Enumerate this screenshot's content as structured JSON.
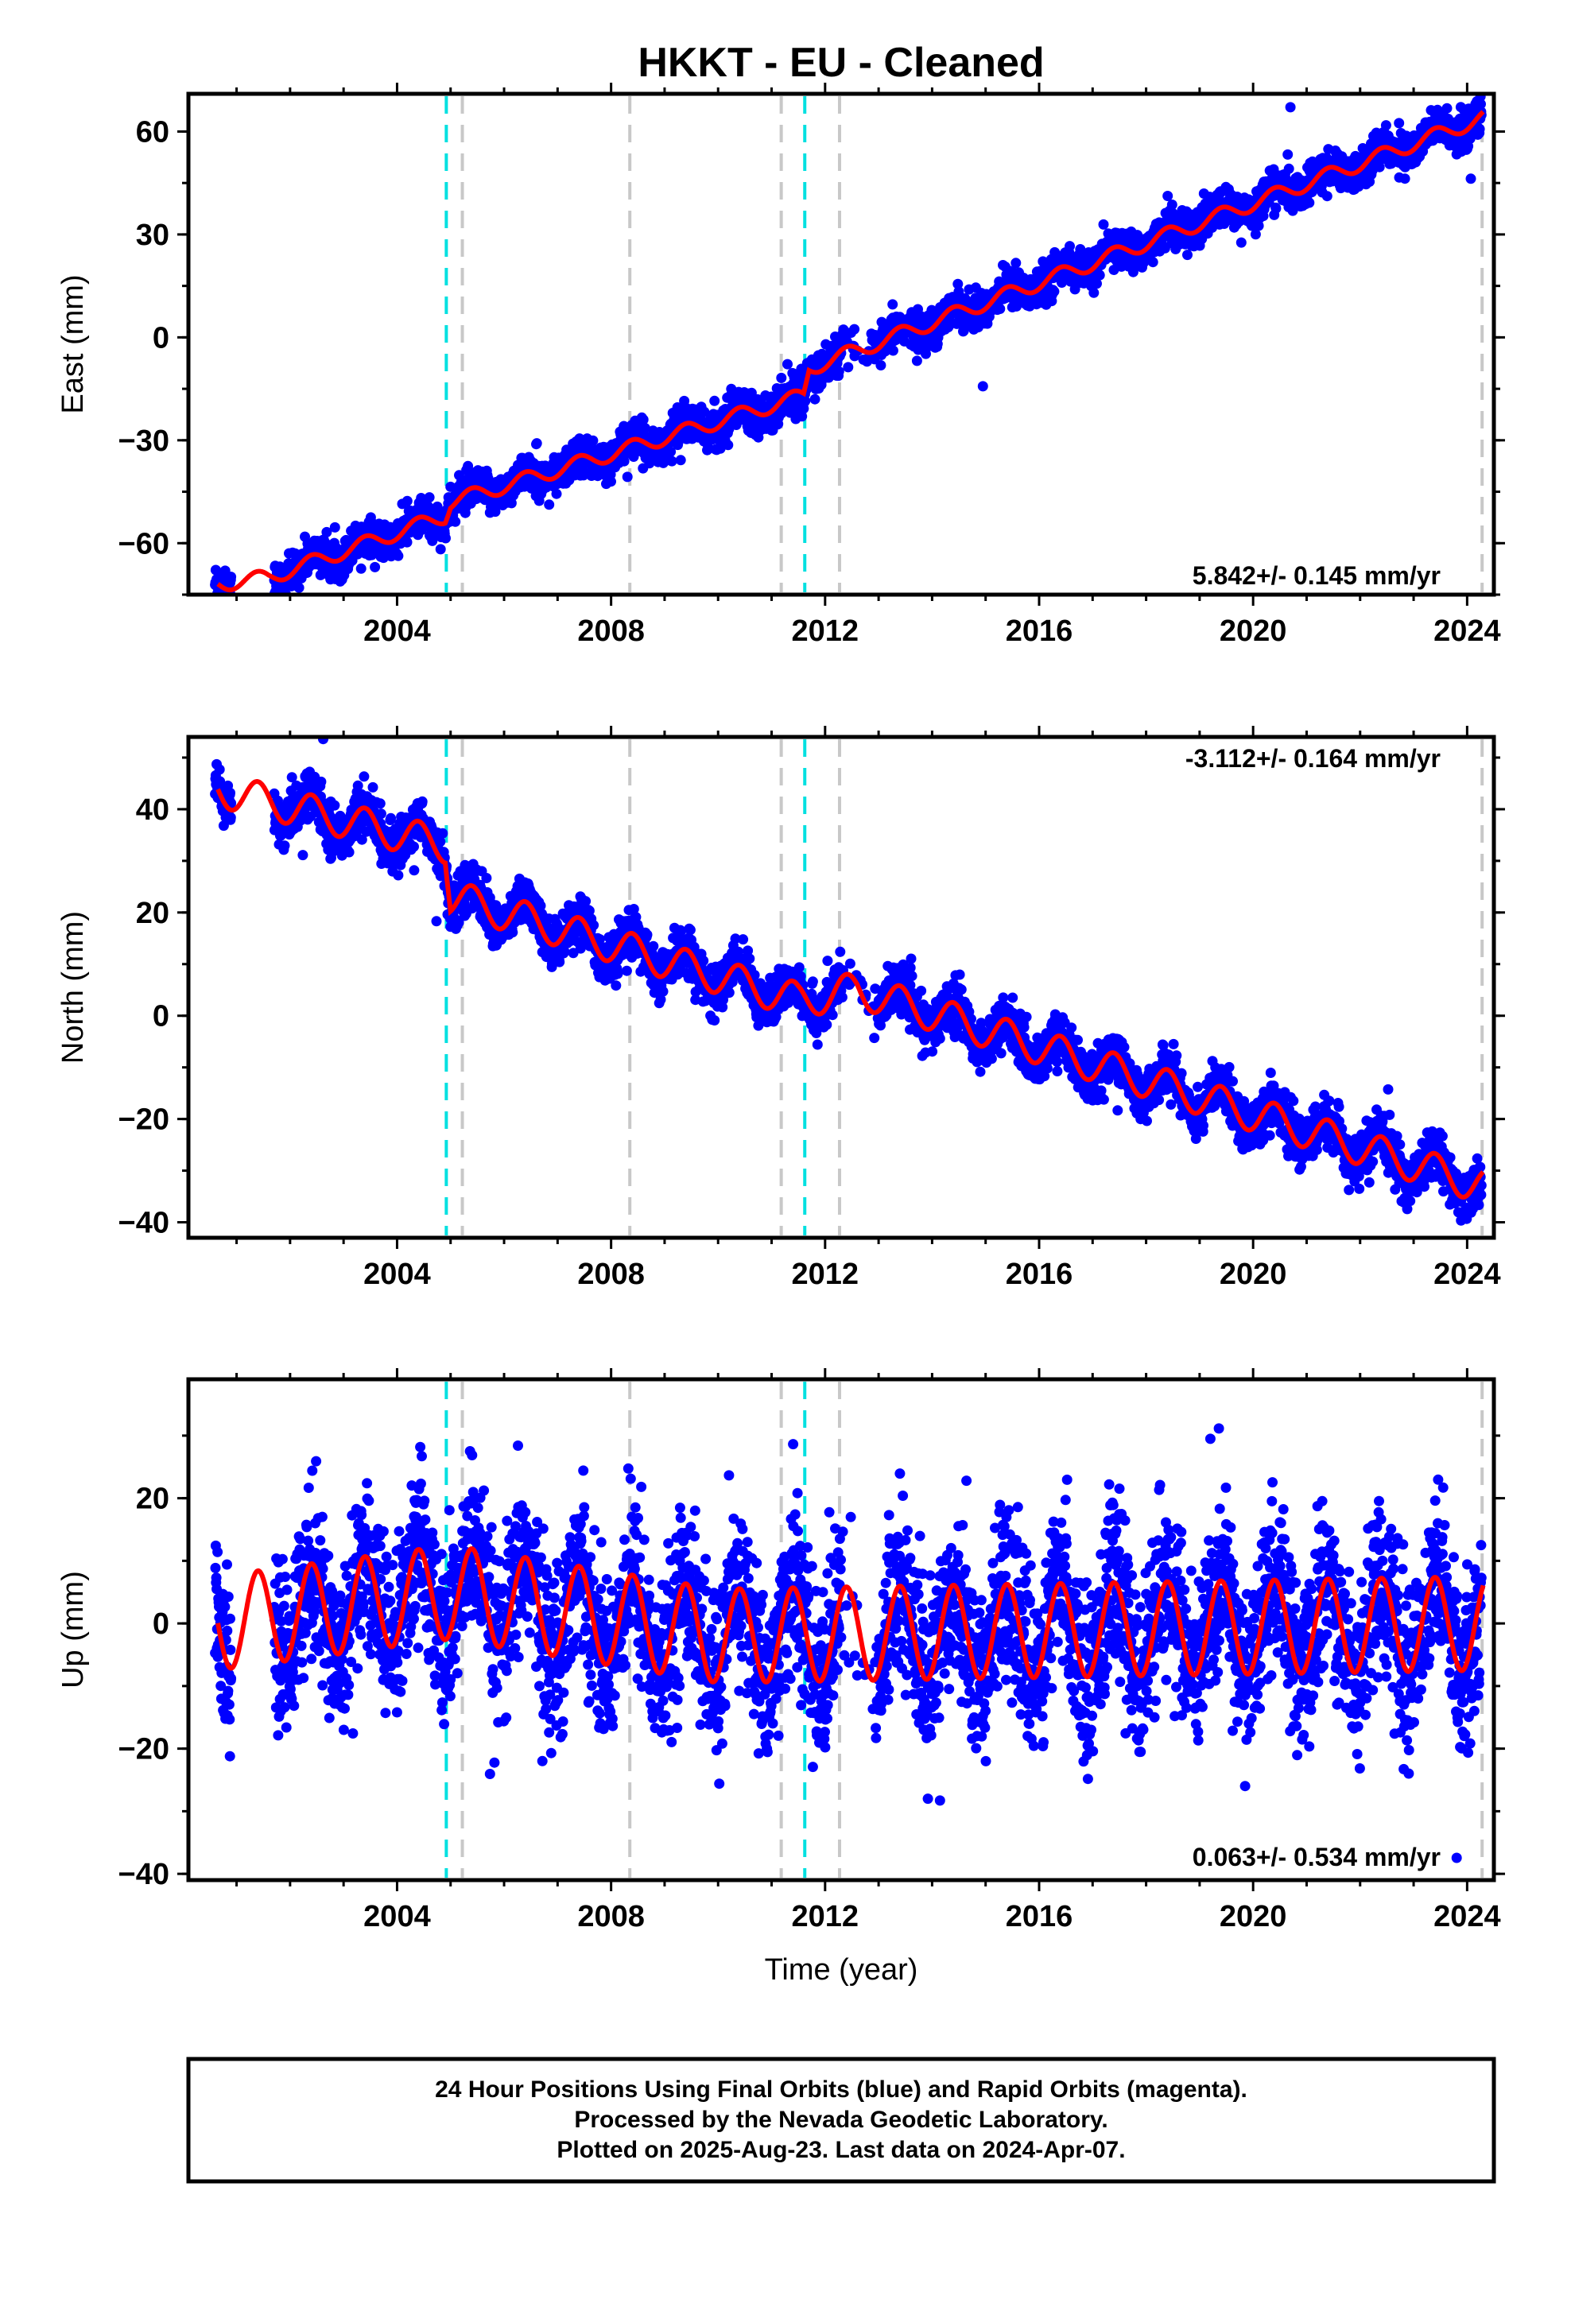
{
  "title": "HKKT  - EU - Cleaned",
  "xlabel": "Time (year)",
  "footer": {
    "line1": "24 Hour Positions Using Final Orbits (blue) and Rapid Orbits (magenta).",
    "line2": "Processed by the Nevada Geodetic Laboratory.",
    "line3": "Plotted on 2025-Aug-23. Last data on 2024-Apr-07."
  },
  "colors": {
    "points": "#0000ff",
    "fit": "#ff0000",
    "equipment_change": "#c8c8c8",
    "earthquake": "#00e0e0"
  },
  "chart_data": [
    {
      "type": "scatter",
      "name": "east",
      "ylabel": "East (mm)",
      "rate_text": "5.842+/- 0.145 mm/yr",
      "xlim": [
        2000.1,
        2024.5
      ],
      "ylim": [
        -75,
        71
      ],
      "xticks": [
        2004,
        2008,
        2012,
        2016,
        2020,
        2024
      ],
      "yticks": [
        -60,
        -30,
        0,
        30,
        60
      ],
      "steps": [
        [
          2004.95,
          4
        ],
        [
          2011.62,
          5.5
        ]
      ],
      "fit": {
        "trend": [
          [
            2000.6,
            -72
          ],
          [
            2001.6,
            -70
          ],
          [
            2004.9,
            -52
          ],
          [
            2005.0,
            -48
          ],
          [
            2011.6,
            -17
          ],
          [
            2011.7,
            -9
          ],
          [
            2024.3,
            64
          ]
        ],
        "seasonal_amp": 2.2,
        "noise": 2.6
      },
      "data_start": 2000.6,
      "data_gap": [
        2000.9,
        2001.7
      ],
      "data_end": 2024.27,
      "fit_gap_fill": [
        2012.3,
        2013.0
      ]
    },
    {
      "type": "scatter",
      "name": "north",
      "ylabel": "North (mm)",
      "rate_text": "-3.112+/- 0.164 mm/yr",
      "xlim": [
        2000.1,
        2024.5
      ],
      "ylim": [
        -43,
        54
      ],
      "xticks": [
        2004,
        2008,
        2012,
        2016,
        2020,
        2024
      ],
      "yticks": [
        -40,
        -20,
        0,
        20,
        40
      ],
      "steps": [
        [
          2004.95,
          -9
        ]
      ],
      "fit": {
        "trend": [
          [
            2000.6,
            44
          ],
          [
            2004.9,
            33
          ],
          [
            2005.0,
            23
          ],
          [
            2011.5,
            3
          ],
          [
            2012.6,
            5
          ],
          [
            2024.3,
            -33
          ]
        ],
        "seasonal_amp": 3.4,
        "noise": 2.2
      },
      "data_start": 2000.6,
      "data_gap": [
        2000.9,
        2001.7
      ],
      "data_end": 2024.27,
      "fit_gap_fill": [
        2012.3,
        2013.0
      ]
    },
    {
      "type": "scatter",
      "name": "up",
      "ylabel": "Up (mm)",
      "rate_text": "0.063+/- 0.534 mm/yr",
      "xlim": [
        2000.1,
        2024.5
      ],
      "ylim": [
        -41,
        39
      ],
      "xticks": [
        2004,
        2008,
        2012,
        2016,
        2020,
        2024
      ],
      "yticks": [
        -40,
        -20,
        0,
        20
      ],
      "steps": [],
      "fit": {
        "trend": [
          [
            2000.6,
            0
          ],
          [
            2005.0,
            5
          ],
          [
            2010.0,
            -2
          ],
          [
            2024.3,
            0
          ]
        ],
        "seasonal_amp": 7.5,
        "noise": 6.5
      },
      "data_start": 2000.6,
      "data_gap": [
        2000.9,
        2001.7
      ],
      "data_end": 2024.27,
      "fit_gap_fill": [
        2012.3,
        2013.0
      ]
    }
  ],
  "event_lines": [
    {
      "year": 2004.92,
      "kind": "earthquake"
    },
    {
      "year": 2005.22,
      "kind": "equipment_change"
    },
    {
      "year": 2008.35,
      "kind": "equipment_change"
    },
    {
      "year": 2011.18,
      "kind": "equipment_change"
    },
    {
      "year": 2011.62,
      "kind": "earthquake"
    },
    {
      "year": 2012.27,
      "kind": "equipment_change"
    },
    {
      "year": 2024.28,
      "kind": "equipment_change"
    }
  ]
}
